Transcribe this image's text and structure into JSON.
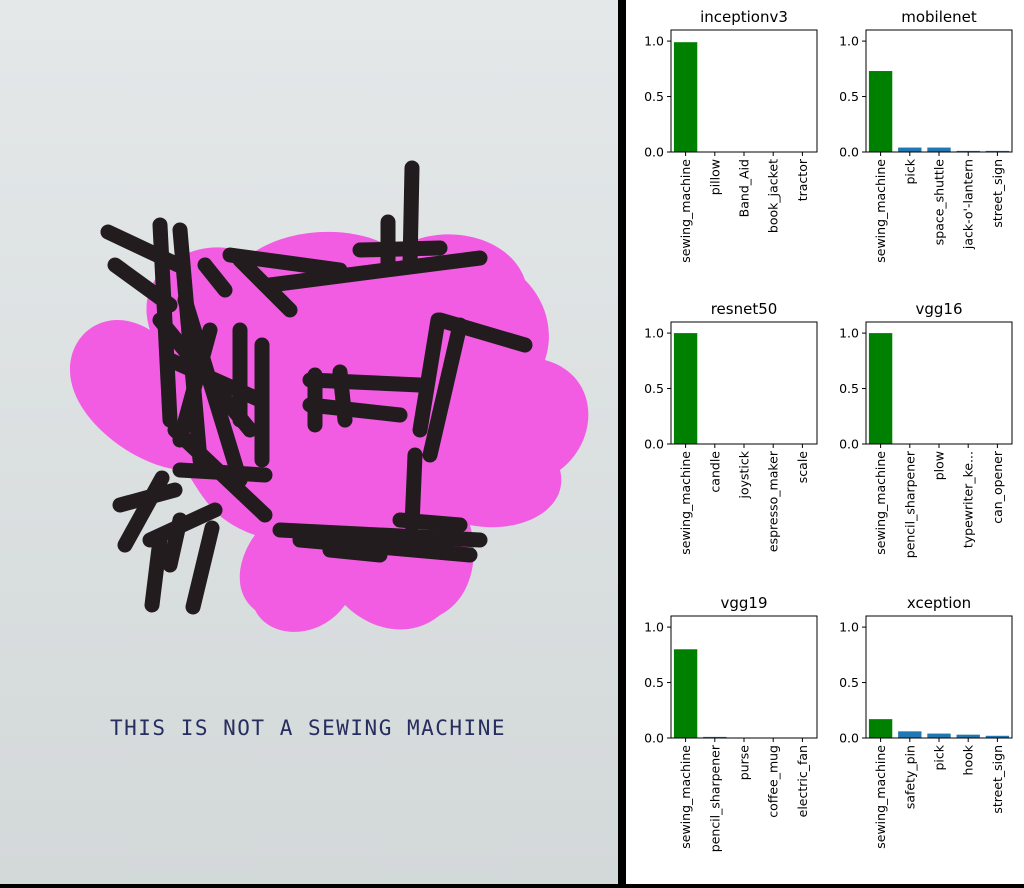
{
  "poster": {
    "caption": "THIS IS NOT A SEWING MACHINE",
    "colors": {
      "background": "#dde2e3",
      "blob": "#f25ce2",
      "ink": "#231c1e",
      "caption": "#272d5e"
    }
  },
  "chart_data": [
    {
      "type": "bar",
      "title": "inceptionv3",
      "categories": [
        "sewing_machine",
        "pillow",
        "Band_Aid",
        "book_jacket",
        "tractor"
      ],
      "values": [
        0.99,
        0.0,
        0.0,
        0.0,
        0.0
      ],
      "ylim": [
        0,
        1.1
      ],
      "yticks": [
        "0.0",
        "0.5",
        "1.0"
      ],
      "colors": [
        "#008000",
        "#1f77b4",
        "#1f77b4",
        "#1f77b4",
        "#1f77b4"
      ]
    },
    {
      "type": "bar",
      "title": "mobilenet",
      "categories": [
        "sewing_machine",
        "pick",
        "space_shuttle",
        "jack-o'-lantern",
        "street_sign"
      ],
      "values": [
        0.73,
        0.04,
        0.04,
        0.01,
        0.01
      ],
      "ylim": [
        0,
        1.1
      ],
      "yticks": [
        "0.0",
        "0.5",
        "1.0"
      ],
      "colors": [
        "#008000",
        "#1f77b4",
        "#1f77b4",
        "#1f77b4",
        "#1f77b4"
      ]
    },
    {
      "type": "bar",
      "title": "resnet50",
      "categories": [
        "sewing_machine",
        "candle",
        "joystick",
        "espresso_maker",
        "scale"
      ],
      "values": [
        1.0,
        0.0,
        0.0,
        0.0,
        0.0
      ],
      "ylim": [
        0,
        1.1
      ],
      "yticks": [
        "0.0",
        "0.5",
        "1.0"
      ],
      "colors": [
        "#008000",
        "#1f77b4",
        "#1f77b4",
        "#1f77b4",
        "#1f77b4"
      ]
    },
    {
      "type": "bar",
      "title": "vgg16",
      "categories": [
        "sewing_machine",
        "pencil_sharpener",
        "plow",
        "typewriter_ke...",
        "can_opener"
      ],
      "values": [
        1.0,
        0.0,
        0.0,
        0.0,
        0.0
      ],
      "ylim": [
        0,
        1.1
      ],
      "yticks": [
        "0.0",
        "0.5",
        "1.0"
      ],
      "colors": [
        "#008000",
        "#1f77b4",
        "#1f77b4",
        "#1f77b4",
        "#1f77b4"
      ]
    },
    {
      "type": "bar",
      "title": "vgg19",
      "categories": [
        "sewing_machine",
        "pencil_sharpener",
        "purse",
        "coffee_mug",
        "electric_fan"
      ],
      "values": [
        0.8,
        0.01,
        0.0,
        0.0,
        0.0
      ],
      "ylim": [
        0,
        1.1
      ],
      "yticks": [
        "0.0",
        "0.5",
        "1.0"
      ],
      "colors": [
        "#008000",
        "#1f77b4",
        "#1f77b4",
        "#1f77b4",
        "#1f77b4"
      ]
    },
    {
      "type": "bar",
      "title": "xception",
      "categories": [
        "sewing_machine",
        "safety_pin",
        "pick",
        "hook",
        "street_sign"
      ],
      "values": [
        0.17,
        0.06,
        0.04,
        0.03,
        0.02
      ],
      "ylim": [
        0,
        1.1
      ],
      "yticks": [
        "0.0",
        "0.5",
        "1.0"
      ],
      "colors": [
        "#008000",
        "#1f77b4",
        "#1f77b4",
        "#1f77b4",
        "#1f77b4"
      ]
    }
  ]
}
